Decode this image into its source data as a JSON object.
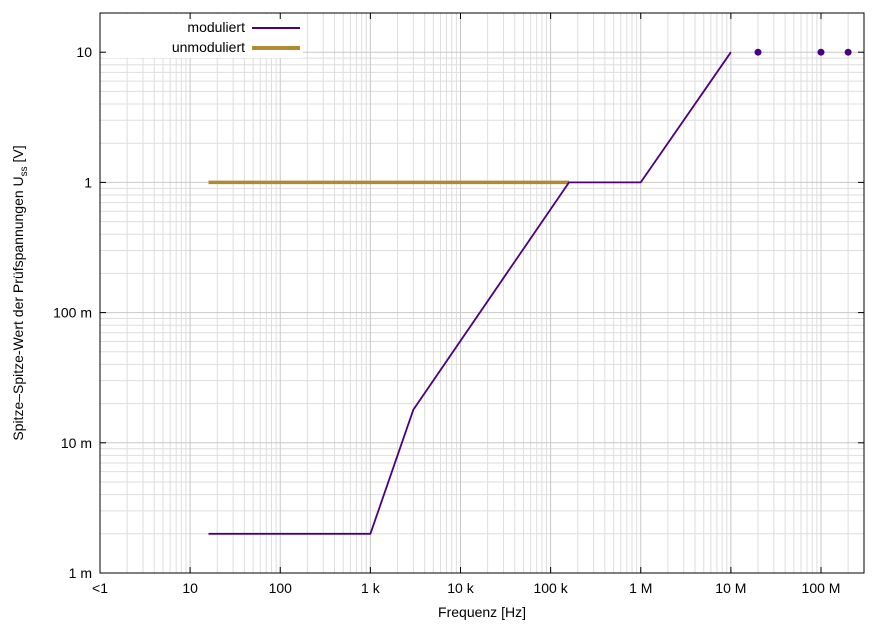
{
  "chart_data": {
    "type": "line",
    "xlabel": "Frequenz [Hz]",
    "ylabel": "Spitze–Spitze-Wert der Prüfspannungen U",
    "ylabel_sub": "ss",
    "ylabel_suffix": " [V]",
    "xscale": "log",
    "yscale": "log",
    "xlim": [
      1,
      300000000
    ],
    "ylim": [
      0.001,
      20
    ],
    "grid": true,
    "legend_position": "top-left",
    "x_ticks": [
      {
        "value": 1,
        "label": "<1"
      },
      {
        "value": 10,
        "label": "10"
      },
      {
        "value": 100,
        "label": "100"
      },
      {
        "value": 1000,
        "label": "1 k"
      },
      {
        "value": 10000,
        "label": "10 k"
      },
      {
        "value": 100000,
        "label": "100 k"
      },
      {
        "value": 1000000,
        "label": "1 M"
      },
      {
        "value": 10000000,
        "label": "10 M"
      },
      {
        "value": 100000000,
        "label": "100 M"
      }
    ],
    "y_ticks": [
      {
        "value": 0.001,
        "label": "1 m"
      },
      {
        "value": 0.01,
        "label": "10 m"
      },
      {
        "value": 0.1,
        "label": "100 m"
      },
      {
        "value": 1,
        "label": "1"
      },
      {
        "value": 10,
        "label": "10"
      }
    ],
    "series": [
      {
        "name": "moduliert",
        "color": "#4b0082",
        "points": [
          [
            16,
            0.002
          ],
          [
            1000,
            0.002
          ],
          [
            3000,
            0.018
          ],
          [
            160000,
            1
          ],
          [
            1000000,
            1
          ],
          [
            10000000,
            10
          ]
        ],
        "markers": [
          [
            20000000,
            10
          ],
          [
            100000000,
            10
          ],
          [
            200000000,
            10
          ]
        ]
      },
      {
        "name": "unmoduliert",
        "color": "#b08a2e",
        "points": [
          [
            16,
            1
          ],
          [
            160000,
            1
          ]
        ]
      }
    ]
  }
}
